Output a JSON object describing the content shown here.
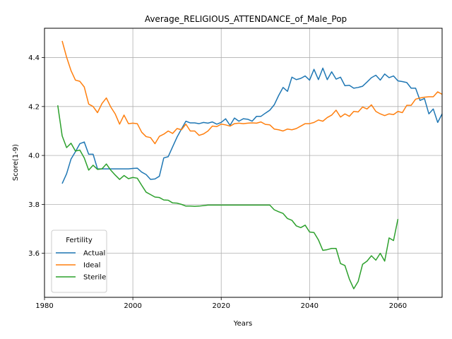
{
  "chart_data": {
    "type": "line",
    "title": "Average_RELIGIOUS_ATTENDANCE_of_Male_Pop",
    "xlabel": "Years",
    "ylabel": "Score(1-9)",
    "xlim": [
      1980,
      2070
    ],
    "ylim": [
      3.42,
      4.52
    ],
    "xticks": [
      1980,
      2000,
      2020,
      2040,
      2060
    ],
    "yticks": [
      3.6,
      3.8,
      4.0,
      4.2,
      4.4
    ],
    "grid": true,
    "legend": {
      "title": "Fertility",
      "placement": "lower-left"
    },
    "series": [
      {
        "name": "Actual",
        "color": "#1f77b4",
        "x": [
          1984,
          1985,
          1986,
          1987,
          1988,
          1989,
          1990,
          1991,
          1992,
          1993,
          1994,
          1995,
          1996,
          1997,
          1998,
          1999,
          2000,
          2001,
          2002,
          2003,
          2004,
          2005,
          2006,
          2007,
          2008,
          2009,
          2010,
          2011,
          2012,
          2013,
          2014,
          2015,
          2016,
          2017,
          2018,
          2019,
          2020,
          2021,
          2022,
          2023,
          2024,
          2025,
          2026,
          2027,
          2028,
          2029,
          2030,
          2031,
          2032,
          2033,
          2034,
          2035,
          2036,
          2037,
          2038,
          2039,
          2040,
          2041,
          2042,
          2043,
          2044,
          2045,
          2046,
          2047,
          2048,
          2049,
          2050,
          2051,
          2052,
          2053,
          2054,
          2055,
          2056,
          2057,
          2058,
          2059,
          2060,
          2061,
          2062,
          2063,
          2064,
          2065,
          2066,
          2067,
          2068,
          2069,
          2070
        ],
        "y": [
          3.885,
          3.925,
          3.985,
          4.015,
          4.048,
          4.055,
          4.005,
          4.005,
          3.945,
          3.945,
          3.945,
          3.945,
          3.945,
          3.945,
          3.945,
          3.945,
          3.947,
          3.948,
          3.932,
          3.922,
          3.902,
          3.904,
          3.915,
          3.99,
          3.995,
          4.035,
          4.075,
          4.108,
          4.14,
          4.133,
          4.133,
          4.13,
          4.135,
          4.132,
          4.137,
          4.128,
          4.135,
          4.15,
          4.123,
          4.153,
          4.14,
          4.15,
          4.148,
          4.14,
          4.16,
          4.16,
          4.173,
          4.185,
          4.207,
          4.245,
          4.278,
          4.262,
          4.32,
          4.31,
          4.315,
          4.325,
          4.308,
          4.352,
          4.31,
          4.357,
          4.31,
          4.342,
          4.312,
          4.32,
          4.285,
          4.287,
          4.275,
          4.278,
          4.283,
          4.3,
          4.318,
          4.328,
          4.308,
          4.333,
          4.318,
          4.325,
          4.305,
          4.302,
          4.298,
          4.275,
          4.275,
          4.225,
          4.233,
          4.17,
          4.19,
          4.135,
          4.17
        ]
      },
      {
        "name": "Ideal",
        "color": "#ff7f0e",
        "x": [
          1984,
          1985,
          1986,
          1987,
          1988,
          1989,
          1990,
          1991,
          1992,
          1993,
          1994,
          1995,
          1996,
          1997,
          1998,
          1999,
          2000,
          2001,
          2002,
          2003,
          2004,
          2005,
          2006,
          2007,
          2008,
          2009,
          2010,
          2011,
          2012,
          2013,
          2014,
          2015,
          2016,
          2017,
          2018,
          2019,
          2020,
          2021,
          2022,
          2023,
          2024,
          2025,
          2026,
          2027,
          2028,
          2029,
          2030,
          2031,
          2032,
          2033,
          2034,
          2035,
          2036,
          2037,
          2038,
          2039,
          2040,
          2041,
          2042,
          2043,
          2044,
          2045,
          2046,
          2047,
          2048,
          2049,
          2050,
          2051,
          2052,
          2053,
          2054,
          2055,
          2056,
          2057,
          2058,
          2059,
          2060,
          2061,
          2062,
          2063,
          2064,
          2065,
          2066,
          2067,
          2068,
          2069,
          2070
        ],
        "y": [
          4.468,
          4.402,
          4.347,
          4.308,
          4.303,
          4.28,
          4.21,
          4.2,
          4.175,
          4.212,
          4.235,
          4.198,
          4.17,
          4.128,
          4.165,
          4.13,
          4.132,
          4.13,
          4.095,
          4.077,
          4.073,
          4.048,
          4.078,
          4.087,
          4.1,
          4.09,
          4.11,
          4.105,
          4.128,
          4.1,
          4.1,
          4.082,
          4.088,
          4.1,
          4.12,
          4.118,
          4.128,
          4.125,
          4.12,
          4.13,
          4.132,
          4.13,
          4.132,
          4.133,
          4.132,
          4.137,
          4.127,
          4.125,
          4.108,
          4.105,
          4.1,
          4.108,
          4.105,
          4.11,
          4.12,
          4.13,
          4.13,
          4.135,
          4.145,
          4.14,
          4.155,
          4.165,
          4.185,
          4.157,
          4.17,
          4.16,
          4.18,
          4.178,
          4.198,
          4.19,
          4.207,
          4.18,
          4.17,
          4.163,
          4.17,
          4.167,
          4.18,
          4.175,
          4.205,
          4.205,
          4.23,
          4.235,
          4.238,
          4.24,
          4.24,
          4.26,
          4.25
        ]
      },
      {
        "name": "Sterile",
        "color": "#2ca02c",
        "x": [
          1983,
          1984,
          1985,
          1986,
          1987,
          1988,
          1989,
          1990,
          1991,
          1992,
          1993,
          1994,
          1995,
          1996,
          1997,
          1998,
          1999,
          2000,
          2001,
          2002,
          2003,
          2004,
          2005,
          2006,
          2007,
          2008,
          2009,
          2010,
          2011,
          2012,
          2013,
          2014,
          2015,
          2016,
          2017,
          2018,
          2019,
          2020,
          2021,
          2022,
          2023,
          2024,
          2025,
          2026,
          2027,
          2028,
          2029,
          2030,
          2031,
          2032,
          2033,
          2034,
          2035,
          2036,
          2037,
          2038,
          2039,
          2040,
          2041,
          2042,
          2043,
          2044,
          2045,
          2046,
          2047,
          2048,
          2049,
          2050,
          2051,
          2052,
          2053,
          2054,
          2055,
          2056,
          2057,
          2058,
          2059,
          2060
        ],
        "y": [
          4.205,
          4.08,
          4.032,
          4.05,
          4.018,
          4.022,
          3.99,
          3.94,
          3.96,
          3.943,
          3.945,
          3.965,
          3.94,
          3.92,
          3.902,
          3.918,
          3.905,
          3.91,
          3.907,
          3.878,
          3.85,
          3.84,
          3.83,
          3.828,
          3.818,
          3.817,
          3.806,
          3.805,
          3.8,
          3.793,
          3.793,
          3.792,
          3.793,
          3.795,
          3.797,
          3.797,
          3.797,
          3.797,
          3.797,
          3.797,
          3.797,
          3.797,
          3.797,
          3.797,
          3.797,
          3.797,
          3.797,
          3.797,
          3.797,
          3.778,
          3.77,
          3.763,
          3.742,
          3.735,
          3.712,
          3.705,
          3.715,
          3.687,
          3.685,
          3.655,
          3.612,
          3.615,
          3.62,
          3.62,
          3.558,
          3.55,
          3.495,
          3.455,
          3.485,
          3.555,
          3.568,
          3.59,
          3.572,
          3.6,
          3.568,
          3.663,
          3.652,
          3.74
        ]
      }
    ]
  }
}
